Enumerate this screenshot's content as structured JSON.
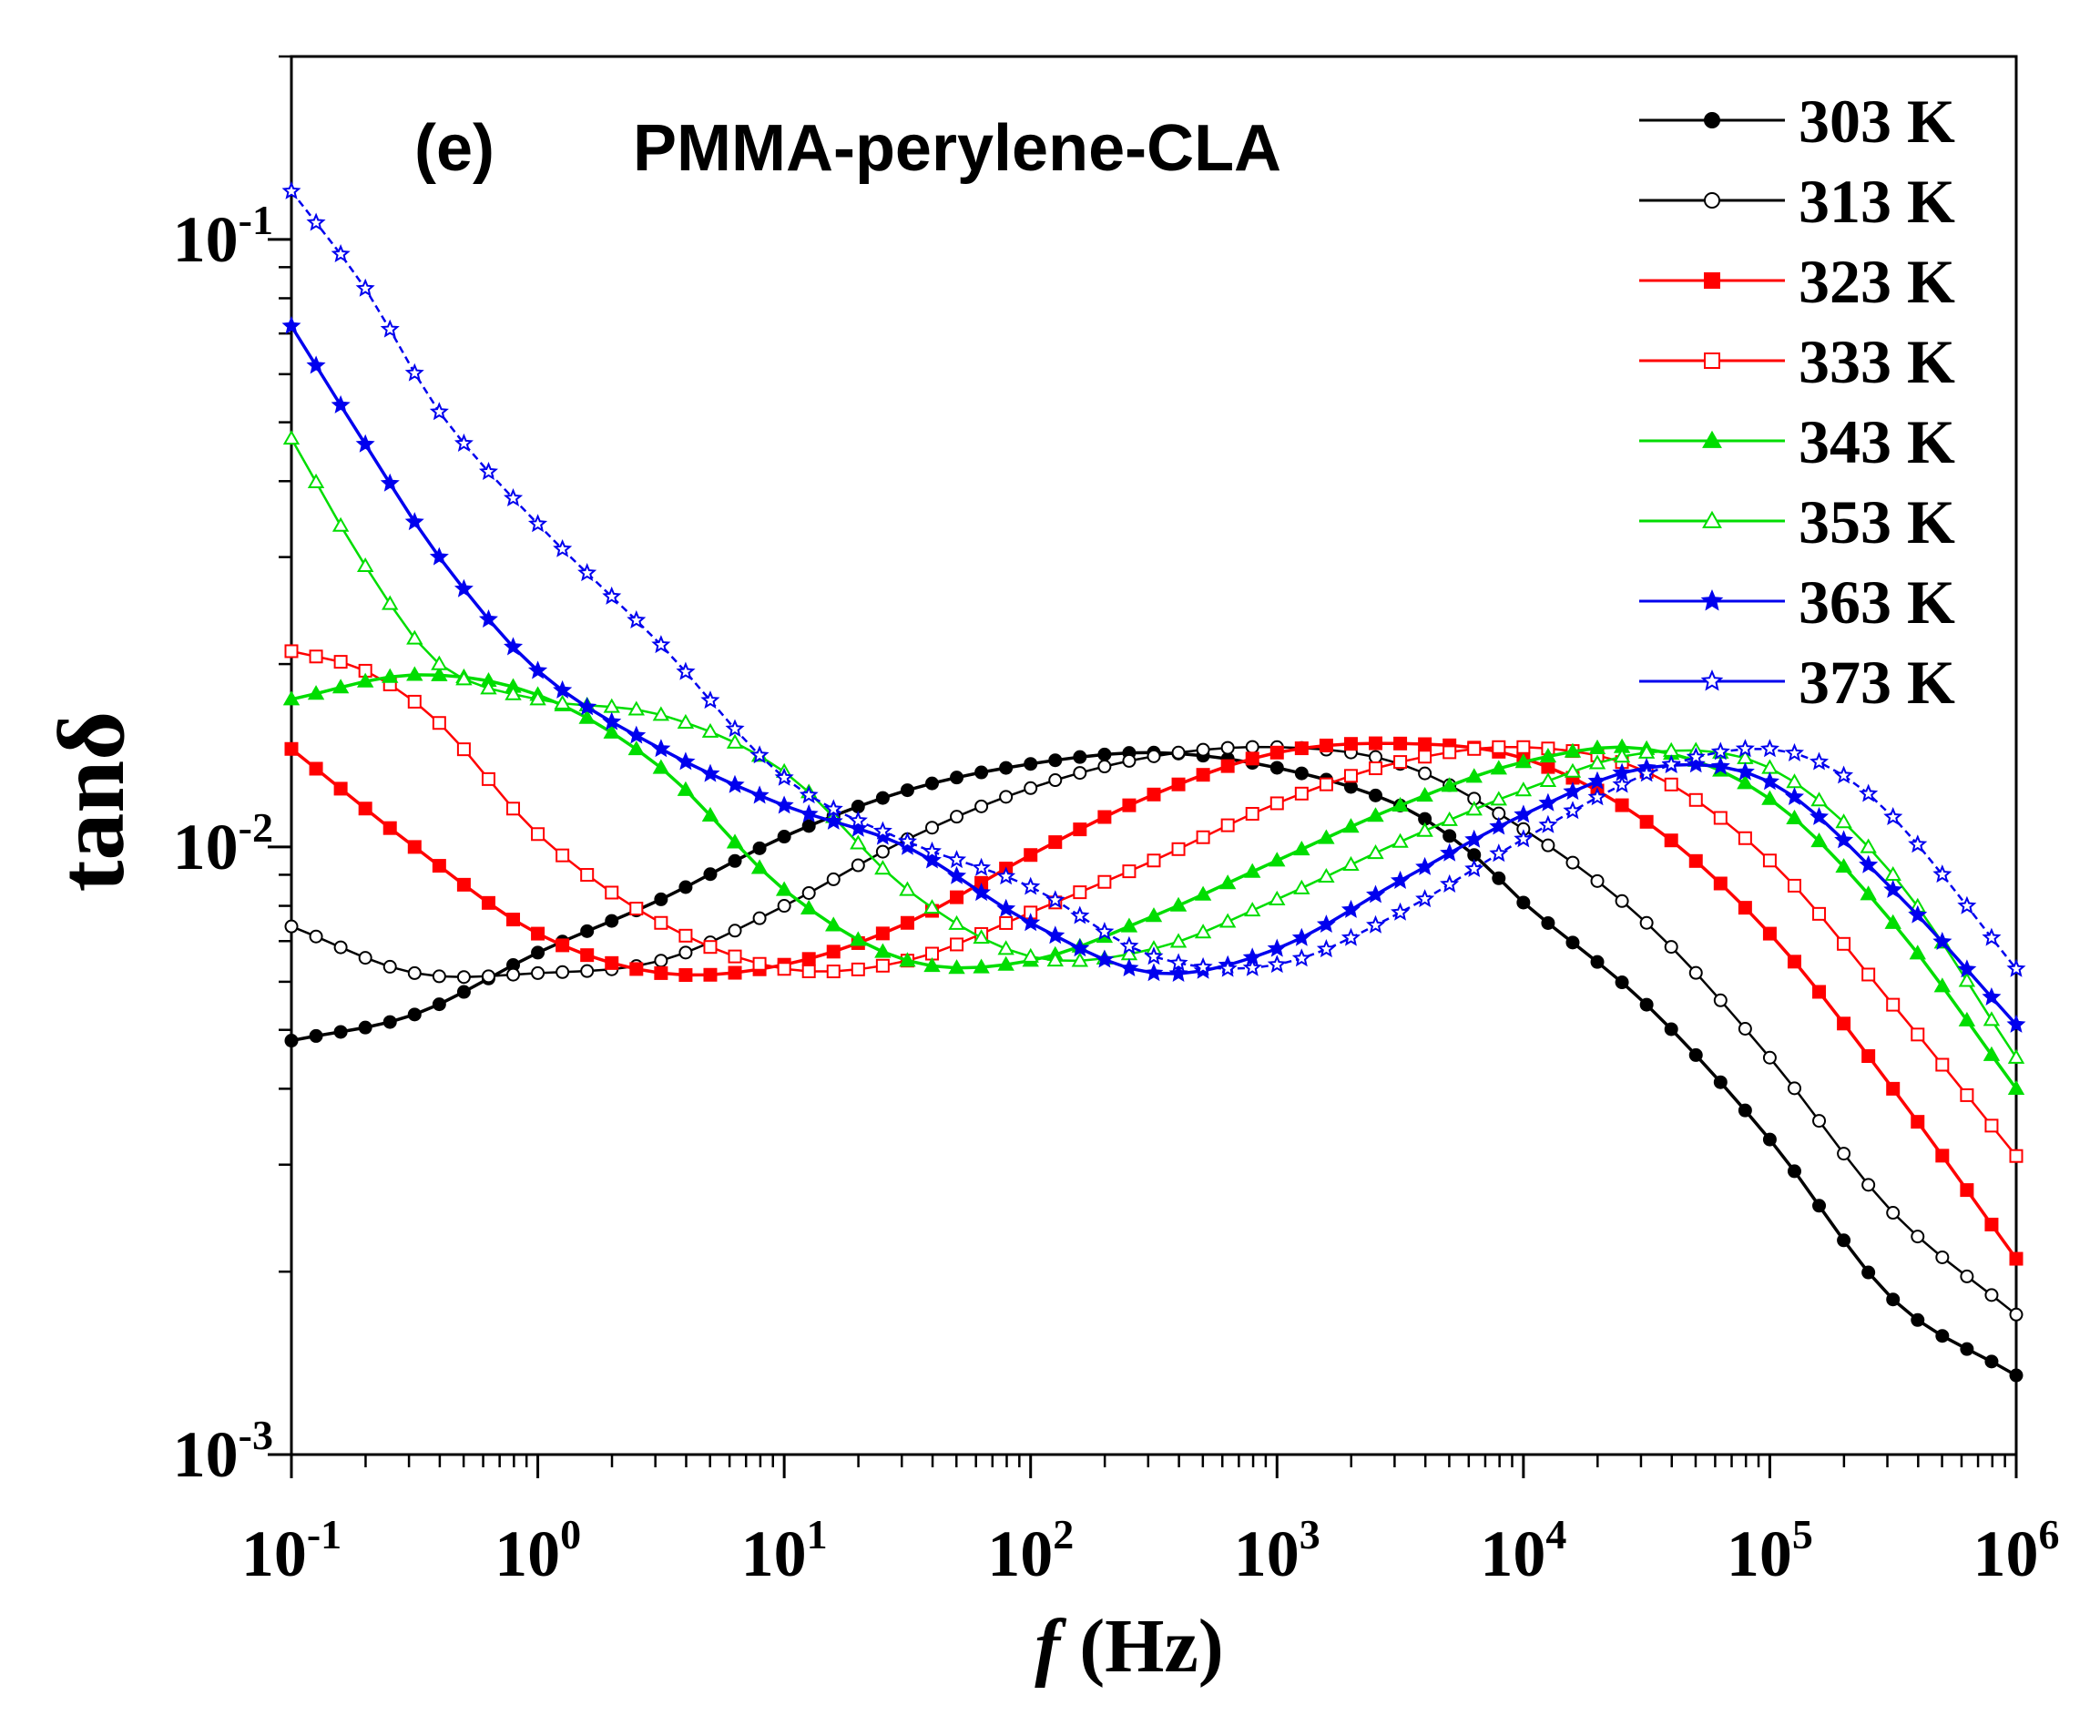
{
  "chart_data": {
    "type": "line",
    "panel_label": "(e)",
    "title": "PMMA-perylene-CLA",
    "ylabel": "tanδ",
    "xlabel_var": "f",
    "xlabel_unit": " (Hz)",
    "xscale": "log",
    "yscale": "log",
    "xlim": [
      0.1,
      1000000
    ],
    "ylim": [
      0.001,
      0.2
    ],
    "x_tick_labels": [
      {
        "base": "10",
        "exp": "-1"
      },
      {
        "base": "10",
        "exp": "0"
      },
      {
        "base": "10",
        "exp": "1"
      },
      {
        "base": "10",
        "exp": "2"
      },
      {
        "base": "10",
        "exp": "3"
      },
      {
        "base": "10",
        "exp": "4"
      },
      {
        "base": "10",
        "exp": "5"
      },
      {
        "base": "10",
        "exp": "6"
      }
    ],
    "y_tick_labels": [
      {
        "base": "10",
        "exp": "-3"
      },
      {
        "base": "10",
        "exp": "-2"
      },
      {
        "base": "10",
        "exp": "-1"
      }
    ],
    "legend_position": "top-right",
    "series": [
      {
        "name": "303 K",
        "color": "#000000",
        "marker": "circle",
        "filled": true,
        "line": "solid",
        "points": [
          [
            -1,
            0.0048
          ],
          [
            -0.5,
            0.0053
          ],
          [
            0,
            0.0067
          ],
          [
            0.5,
            0.0082
          ],
          [
            1,
            0.0104
          ],
          [
            1.5,
            0.0124
          ],
          [
            2,
            0.0137
          ],
          [
            2.5,
            0.0143
          ],
          [
            3,
            0.0135
          ],
          [
            3.5,
            0.0117
          ],
          [
            3.8,
            0.0097
          ],
          [
            4,
            0.0081
          ],
          [
            4.5,
            0.0055
          ],
          [
            5,
            0.0033
          ],
          [
            5.5,
            0.0018
          ],
          [
            6,
            0.00135
          ]
        ]
      },
      {
        "name": "313 K",
        "color": "#000000",
        "marker": "circle",
        "filled": false,
        "line": "solid",
        "points": [
          [
            -1,
            0.0074
          ],
          [
            -0.5,
            0.0062
          ],
          [
            0,
            0.0062
          ],
          [
            0.5,
            0.0065
          ],
          [
            1,
            0.008
          ],
          [
            1.5,
            0.0103
          ],
          [
            2,
            0.0125
          ],
          [
            2.5,
            0.0141
          ],
          [
            3,
            0.0146
          ],
          [
            3.5,
            0.0137
          ],
          [
            4,
            0.0107
          ],
          [
            4.5,
            0.0075
          ],
          [
            5,
            0.0045
          ],
          [
            5.5,
            0.0025
          ],
          [
            6,
            0.0017
          ]
        ]
      },
      {
        "name": "323 K",
        "color": "#ff0000",
        "marker": "square",
        "filled": true,
        "line": "solid",
        "points": [
          [
            -1,
            0.0145
          ],
          [
            -0.5,
            0.01
          ],
          [
            0,
            0.0072
          ],
          [
            0.5,
            0.0062
          ],
          [
            1,
            0.0064
          ],
          [
            1.5,
            0.0075
          ],
          [
            2,
            0.0097
          ],
          [
            2.5,
            0.0122
          ],
          [
            3,
            0.0143
          ],
          [
            3.5,
            0.0148
          ],
          [
            4,
            0.014
          ],
          [
            4.5,
            0.011
          ],
          [
            5,
            0.0072
          ],
          [
            5.5,
            0.004
          ],
          [
            6,
            0.0021
          ]
        ]
      },
      {
        "name": "333 K",
        "color": "#ff0000",
        "marker": "square",
        "filled": false,
        "line": "solid",
        "points": [
          [
            -1,
            0.021
          ],
          [
            -0.7,
            0.0195
          ],
          [
            -0.4,
            0.016
          ],
          [
            0,
            0.0105
          ],
          [
            0.5,
            0.0075
          ],
          [
            1,
            0.0063
          ],
          [
            1.5,
            0.0065
          ],
          [
            2,
            0.0078
          ],
          [
            2.5,
            0.0095
          ],
          [
            3,
            0.0118
          ],
          [
            3.5,
            0.0138
          ],
          [
            4,
            0.0146
          ],
          [
            4.5,
            0.0133
          ],
          [
            5,
            0.0095
          ],
          [
            5.5,
            0.0055
          ],
          [
            6,
            0.0031
          ]
        ]
      },
      {
        "name": "343 K",
        "color": "#00dd00",
        "marker": "triangle",
        "filled": true,
        "line": "solid",
        "points": [
          [
            -1,
            0.0175
          ],
          [
            -0.5,
            0.0192
          ],
          [
            0,
            0.0178
          ],
          [
            0.5,
            0.0135
          ],
          [
            1,
            0.0085
          ],
          [
            1.5,
            0.0065
          ],
          [
            2,
            0.0065
          ],
          [
            2.5,
            0.0077
          ],
          [
            3,
            0.0095
          ],
          [
            3.5,
            0.0117
          ],
          [
            4,
            0.0138
          ],
          [
            4.5,
            0.0145
          ],
          [
            5,
            0.012
          ],
          [
            5.5,
            0.0075
          ],
          [
            6,
            0.004
          ]
        ]
      },
      {
        "name": "353 K",
        "color": "#00dd00",
        "marker": "triangle",
        "filled": false,
        "line": "solid",
        "points": [
          [
            -1,
            0.047
          ],
          [
            -0.7,
            0.029
          ],
          [
            -0.4,
            0.02
          ],
          [
            0,
            0.0175
          ],
          [
            0.5,
            0.0165
          ],
          [
            1,
            0.0133
          ],
          [
            1.5,
            0.0085
          ],
          [
            2,
            0.0066
          ],
          [
            2.5,
            0.0068
          ],
          [
            3,
            0.0082
          ],
          [
            3.5,
            0.0102
          ],
          [
            4,
            0.0124
          ],
          [
            4.5,
            0.0143
          ],
          [
            5,
            0.0135
          ],
          [
            5.5,
            0.009
          ],
          [
            6,
            0.0045
          ]
        ]
      },
      {
        "name": "363 K",
        "color": "#0000ee",
        "marker": "star",
        "filled": true,
        "line": "solid",
        "points": [
          [
            -1,
            0.072
          ],
          [
            -0.7,
            0.046
          ],
          [
            -0.4,
            0.03
          ],
          [
            0,
            0.0195
          ],
          [
            0.5,
            0.0145
          ],
          [
            1,
            0.0117
          ],
          [
            1.5,
            0.01
          ],
          [
            2,
            0.0075
          ],
          [
            2.5,
            0.0062
          ],
          [
            3,
            0.0068
          ],
          [
            3.5,
            0.0088
          ],
          [
            4,
            0.0113
          ],
          [
            4.5,
            0.0135
          ],
          [
            5,
            0.0128
          ],
          [
            5.5,
            0.0085
          ],
          [
            6,
            0.0051
          ]
        ]
      },
      {
        "name": "373 K",
        "color": "#0000ee",
        "marker": "star",
        "filled": false,
        "line": "dashed",
        "points": [
          [
            -1,
            0.12
          ],
          [
            -0.7,
            0.083
          ],
          [
            -0.4,
            0.052
          ],
          [
            0,
            0.034
          ],
          [
            0.5,
            0.0215
          ],
          [
            1,
            0.013
          ],
          [
            1.5,
            0.0102
          ],
          [
            2,
            0.0086
          ],
          [
            2.5,
            0.0066
          ],
          [
            3,
            0.0064
          ],
          [
            3.5,
            0.0078
          ],
          [
            4,
            0.0103
          ],
          [
            4.5,
            0.0132
          ],
          [
            4.9,
            0.0145
          ],
          [
            5.2,
            0.0138
          ],
          [
            5.5,
            0.0112
          ],
          [
            6,
            0.0063
          ]
        ]
      }
    ]
  }
}
